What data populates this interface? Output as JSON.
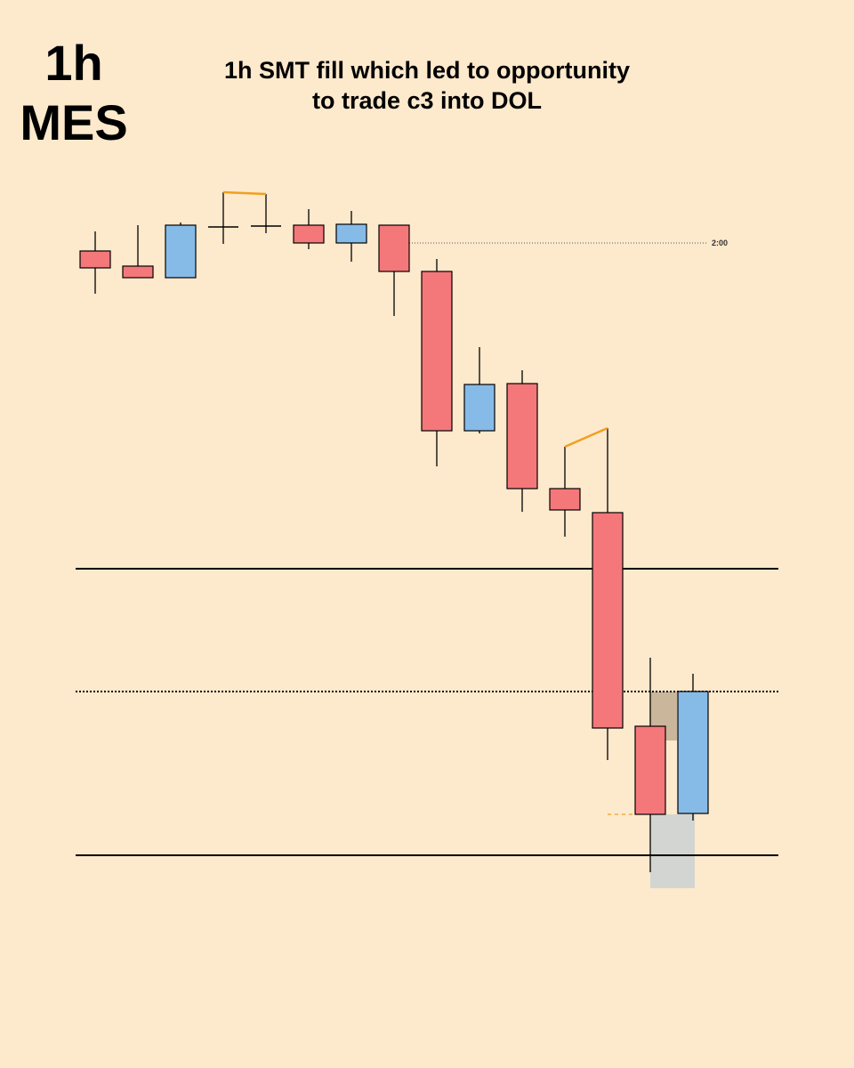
{
  "chart_data": {
    "type": "candlestick",
    "symbol_lines": [
      "1h",
      "MES"
    ],
    "title_lines": [
      "1h SMT fill which led to opportunity",
      "to trade c3 into DOL"
    ],
    "ylim": [
      0,
      1000
    ],
    "up_color": "#86bbe8",
    "down_color": "#f4777a",
    "smt_color": "#f0a020",
    "open": [
      718,
      701,
      688,
      745,
      746,
      747,
      727,
      747,
      695,
      516,
      569,
      451,
      424,
      184,
      86
    ],
    "high": [
      740,
      747,
      750,
      784,
      782,
      765,
      763,
      747,
      709,
      610,
      584,
      498,
      519,
      261,
      243
    ],
    "low": [
      670,
      688,
      688,
      726,
      738,
      720,
      706,
      645,
      476,
      513,
      425,
      397,
      146,
      20,
      78
    ],
    "close": [
      699,
      688,
      747,
      745,
      746,
      727,
      748,
      695,
      516,
      568,
      451,
      427,
      182,
      85,
      223
    ],
    "levels": [
      {
        "value": 361,
        "style": "solid"
      },
      {
        "value": 39,
        "style": "solid"
      },
      {
        "value": 223,
        "style": "dotted"
      },
      {
        "value": 727,
        "style": "fine",
        "label": "2:00"
      }
    ],
    "zones": [
      {
        "top": 223,
        "bottom": 168,
        "color": "#c9b69b"
      },
      {
        "top": 85,
        "bottom": 2,
        "color": "#d3d5d2"
      }
    ]
  }
}
